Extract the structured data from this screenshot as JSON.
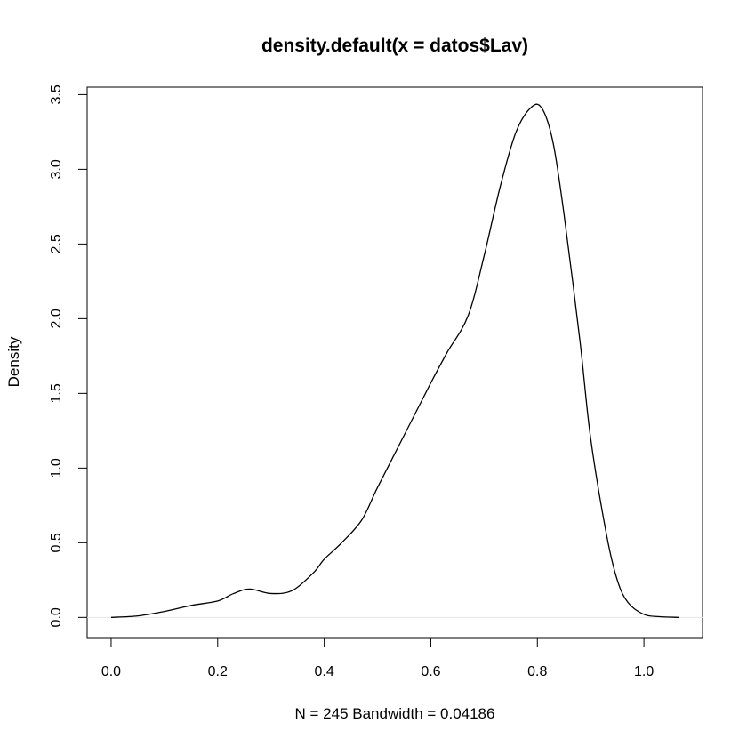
{
  "chart_data": {
    "type": "line",
    "title": "density.default(x = datos$Lav)",
    "xlabel": "N = 245   Bandwidth = 0.04186",
    "ylabel": "Density",
    "xlim": [
      -0.045,
      1.11
    ],
    "ylim": [
      -0.135,
      3.55
    ],
    "x_ticks": [
      "0.0",
      "0.2",
      "0.4",
      "0.6",
      "0.8",
      "1.0"
    ],
    "y_ticks": [
      "0.0",
      "0.5",
      "1.0",
      "1.5",
      "2.0",
      "2.5",
      "3.0",
      "3.5"
    ],
    "grid": false,
    "zero_line": true,
    "series": [
      {
        "x": [
          0.0,
          0.05,
          0.1,
          0.15,
          0.2,
          0.23,
          0.26,
          0.3,
          0.34,
          0.38,
          0.4,
          0.43,
          0.47,
          0.5,
          0.55,
          0.6,
          0.63,
          0.67,
          0.7,
          0.73,
          0.76,
          0.79,
          0.81,
          0.83,
          0.85,
          0.88,
          0.9,
          0.93,
          0.95,
          0.97,
          1.0,
          1.03,
          1.065
        ],
        "y": [
          0.0,
          0.01,
          0.04,
          0.08,
          0.11,
          0.16,
          0.19,
          0.16,
          0.18,
          0.3,
          0.39,
          0.49,
          0.65,
          0.87,
          1.22,
          1.57,
          1.77,
          2.02,
          2.42,
          2.88,
          3.25,
          3.42,
          3.4,
          3.17,
          2.7,
          1.85,
          1.2,
          0.55,
          0.25,
          0.1,
          0.02,
          0.005,
          0.0
        ]
      }
    ]
  }
}
